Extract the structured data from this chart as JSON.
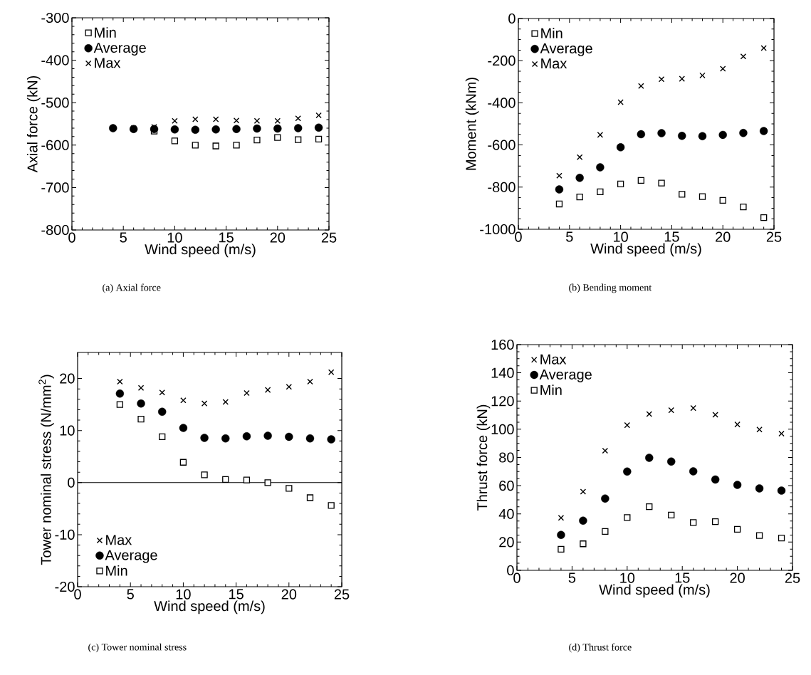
{
  "chart_data": [
    {
      "type": "scatter",
      "xlabel": "Wind speed (m/s)",
      "ylabel": "Axial force (kN)",
      "xlim": [
        0,
        25
      ],
      "ylim": [
        -800,
        -300
      ],
      "xticks": [
        0,
        5,
        10,
        15,
        20,
        25
      ],
      "yticks": [
        -800,
        -700,
        -600,
        -500,
        -400,
        -300
      ],
      "legend": "top left",
      "annotations": [
        "(a) Axial force"
      ],
      "x": [
        4,
        6,
        8,
        10,
        12,
        14,
        16,
        18,
        20,
        22,
        24
      ],
      "series": [
        {
          "name": "Min",
          "color": "#000000",
          "marker": "square",
          "values": [
            null,
            null,
            -567,
            -590,
            -600,
            -602,
            -600,
            -588,
            -582,
            -587,
            -586
          ]
        },
        {
          "name": "Average",
          "color": "#000000",
          "marker": "circle",
          "values": [
            -560,
            -562,
            -562,
            -563,
            -564,
            -563,
            -562,
            -561,
            -561,
            -560,
            -559
          ]
        },
        {
          "name": "Max",
          "color": "#000000",
          "marker": "cross",
          "values": [
            null,
            -560,
            -557,
            -543,
            -539,
            -539,
            -542,
            -543,
            -543,
            -537,
            -530
          ]
        }
      ]
    },
    {
      "type": "scatter",
      "xlabel": "Wind speed (m/s)",
      "ylabel": "Moment (kNm)",
      "xlim": [
        0,
        25
      ],
      "ylim": [
        -1000,
        0
      ],
      "xticks": [
        0,
        5,
        10,
        15,
        20,
        25
      ],
      "yticks": [
        -1000,
        -800,
        -600,
        -400,
        -200,
        0
      ],
      "legend": "top left",
      "annotations": [
        "(b) Bending moment"
      ],
      "x": [
        4,
        6,
        8,
        10,
        12,
        14,
        16,
        18,
        20,
        22,
        24
      ],
      "series": [
        {
          "name": "Min",
          "color": "#000000",
          "marker": "square",
          "values": [
            -880,
            -847,
            -822,
            -785,
            -768,
            -781,
            -834,
            -845,
            -863,
            -894,
            -945
          ]
        },
        {
          "name": "Average",
          "color": "#000000",
          "marker": "circle",
          "values": [
            -811,
            -756,
            -706,
            -611,
            -549,
            -544,
            -557,
            -558,
            -552,
            -543,
            -534
          ]
        },
        {
          "name": "Max",
          "color": "#000000",
          "marker": "cross",
          "values": [
            -746,
            -658,
            -552,
            -397,
            -320,
            -288,
            -286,
            -270,
            -238,
            -180,
            -140
          ]
        }
      ]
    },
    {
      "type": "scatter",
      "xlabel": "Wind speed (m/s)",
      "ylabel": "Tower nominal stress (N/mm$^{2}$)",
      "xlim": [
        0,
        25
      ],
      "ylim": [
        -20,
        25
      ],
      "xticks": [
        0,
        5,
        10,
        15,
        20,
        25
      ],
      "yticks": [
        -20,
        -10,
        0,
        10,
        20
      ],
      "legend": "bottom left",
      "annotations": [
        "(c) Tower nominal stress"
      ],
      "ref_lines": [
        {
          "axis": "y",
          "value": 0,
          "color": "#000000"
        }
      ],
      "x": [
        4,
        6,
        8,
        10,
        12,
        14,
        16,
        18,
        20,
        22,
        24
      ],
      "series": [
        {
          "name": "Max",
          "color": "#000000",
          "marker": "cross",
          "values": [
            19.4,
            18.2,
            17.3,
            15.8,
            15.2,
            15.5,
            17.2,
            17.8,
            18.4,
            19.4,
            21.2
          ]
        },
        {
          "name": "Average",
          "color": "#000000",
          "marker": "circle",
          "values": [
            17.1,
            15.2,
            13.6,
            10.5,
            8.6,
            8.5,
            8.9,
            9.0,
            8.8,
            8.5,
            8.3
          ]
        },
        {
          "name": "Min",
          "color": "#000000",
          "marker": "square",
          "values": [
            15.0,
            12.2,
            8.8,
            3.9,
            1.5,
            0.6,
            0.5,
            0.0,
            -1.1,
            -2.9,
            -4.4
          ]
        }
      ]
    },
    {
      "type": "scatter",
      "xlabel": "Wind speed (m/s)",
      "ylabel": "Thrust force (kN)",
      "xlim": [
        0,
        25
      ],
      "ylim": [
        0,
        160
      ],
      "xticks": [
        0,
        5,
        10,
        15,
        20,
        25
      ],
      "yticks": [
        0,
        20,
        40,
        60,
        80,
        100,
        120,
        140,
        160
      ],
      "legend": "top left",
      "annotations": [
        "(d) Thrust force"
      ],
      "x": [
        4,
        6,
        8,
        10,
        12,
        14,
        16,
        18,
        20,
        22,
        24
      ],
      "series": [
        {
          "name": "Max",
          "color": "#000000",
          "marker": "cross",
          "values": [
            37.2,
            55.8,
            84.8,
            102.9,
            110.8,
            113.5,
            115.0,
            110.3,
            103.4,
            99.8,
            96.9
          ]
        },
        {
          "name": "Average",
          "color": "#000000",
          "marker": "circle",
          "values": [
            25.1,
            35.2,
            50.9,
            70.0,
            79.8,
            77.1,
            70.2,
            64.4,
            60.6,
            58.1,
            56.5
          ]
        },
        {
          "name": "Min",
          "color": "#000000",
          "marker": "square",
          "values": [
            15.0,
            18.8,
            27.6,
            37.4,
            45.1,
            39.2,
            33.9,
            34.5,
            29.1,
            24.7,
            22.9
          ]
        }
      ]
    }
  ]
}
